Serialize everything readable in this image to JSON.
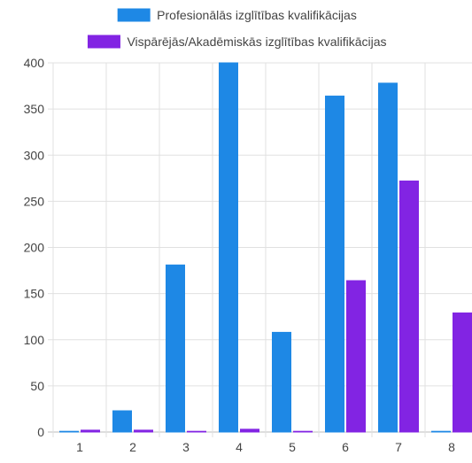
{
  "chart_data": {
    "type": "bar",
    "categories": [
      "1",
      "2",
      "3",
      "4",
      "5",
      "6",
      "7",
      "8"
    ],
    "series": [
      {
        "name": "Profesionālās izglītības kvalifikācijas",
        "color": "#1e88e5",
        "values": [
          0,
          23,
          181,
          400,
          108,
          364,
          378,
          0
        ]
      },
      {
        "name": "Vispārējās/Akadēmiskās izglītības kvalifikācijas",
        "color": "#8224e3",
        "values": [
          2,
          2,
          0,
          3,
          0,
          164,
          272,
          129
        ]
      }
    ],
    "ylim": [
      0,
      400
    ],
    "yticks": [
      0,
      50,
      100,
      150,
      200,
      250,
      300,
      350,
      400
    ],
    "grid": true,
    "legend_position": "top"
  }
}
